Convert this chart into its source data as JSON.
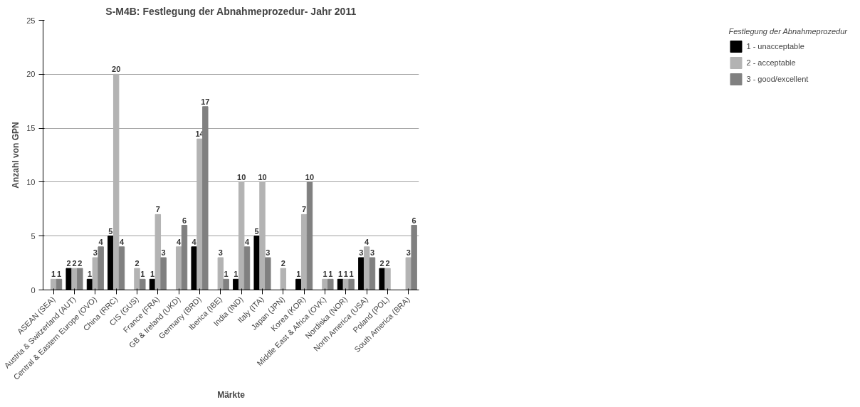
{
  "chart_data": {
    "type": "bar",
    "title": "S-M4B: Festlegung der Abnahmeprozedur- Jahr 2011",
    "xlabel": "Märkte",
    "ylabel": "Anzahl von GPN",
    "legend_title": "Festlegung der Abnahmeprozedur",
    "categories": [
      "ASEAN (SEA)",
      "Austria & Switzerland (AUT)",
      "Central & Eastern Europe (OVO)",
      "China (RRC)",
      "CIS (GUS)",
      "France (FRA)",
      "GB & Ireland (UKD)",
      "Germany (BRD)",
      "Iberica (IBE)",
      "India (IND)",
      "Italy (ITA)",
      "Japan (JPN)",
      "Korea (KOR)",
      "Middle East & Africa (OVK)",
      "Nordiska (NOR)",
      "North America (USA)",
      "Poland (POL)",
      "South America (BRA)"
    ],
    "series": [
      {
        "name": "1 - unacceptable",
        "color": "#000000",
        "values": [
          null,
          2,
          1,
          5,
          null,
          1,
          null,
          4,
          null,
          1,
          5,
          null,
          1,
          null,
          1,
          3,
          2,
          null
        ]
      },
      {
        "name": "2 - acceptable",
        "color": "#b3b3b3",
        "values": [
          1,
          2,
          3,
          20,
          2,
          7,
          4,
          14,
          3,
          10,
          10,
          2,
          7,
          1,
          1,
          4,
          2,
          3
        ]
      },
      {
        "name": "3 - good/excellent",
        "color": "#808080",
        "values": [
          1,
          2,
          4,
          4,
          1,
          3,
          6,
          17,
          1,
          4,
          3,
          null,
          10,
          1,
          1,
          3,
          null,
          6
        ]
      }
    ],
    "ylim": [
      0,
      25
    ],
    "yticks": [
      0,
      5,
      10,
      15,
      20,
      25
    ],
    "grid": "y",
    "legend": "right",
    "data_labels": true
  }
}
